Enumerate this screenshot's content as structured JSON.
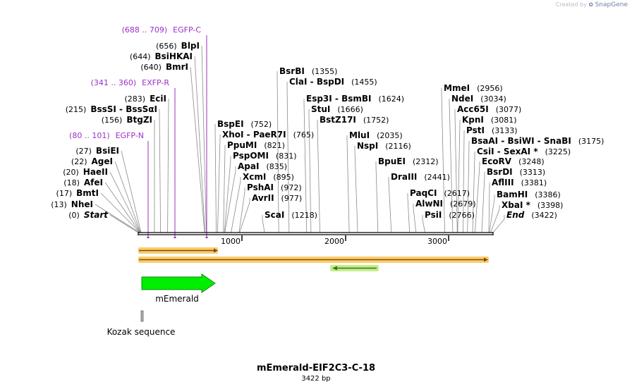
{
  "branding": {
    "created_by": "Created by",
    "product": "SnapGene"
  },
  "plasmid": {
    "name": "mEmerald-EIF2C3-C-18",
    "length_label": "3422 bp",
    "length": 3422
  },
  "ruler": {
    "ticks": [
      "1000",
      "2000",
      "3000"
    ]
  },
  "sites": [
    {
      "pos": "(0)",
      "name": "Start",
      "italic": true,
      "bp": 0
    },
    {
      "pos": "(13)",
      "name": "NheI",
      "bp": 13
    },
    {
      "pos": "(17)",
      "name": "BmtI",
      "bp": 17
    },
    {
      "pos": "(18)",
      "name": "AfeI",
      "bp": 18
    },
    {
      "pos": "(20)",
      "name": "HaeII",
      "bp": 20
    },
    {
      "pos": "(22)",
      "name": "AgeI",
      "bp": 22
    },
    {
      "pos": "(27)",
      "name": "BsiEI",
      "bp": 27
    },
    {
      "pos": "(156)",
      "name": "BtgZI",
      "bp": 156
    },
    {
      "pos": "(215)",
      "name": "BssSI  -  BssSαI",
      "bp": 215
    },
    {
      "pos": "(283)",
      "name": "EciI",
      "bp": 283
    },
    {
      "pos": "(640)",
      "name": "BmrI",
      "bp": 640
    },
    {
      "pos": "(644)",
      "name": "BsiHKAI",
      "bp": 644
    },
    {
      "pos": "(656)",
      "name": "BlpI",
      "bp": 656
    },
    {
      "name": "BspEI",
      "pos": "(752)",
      "bp": 752
    },
    {
      "name": "XhoI  -  PaeR7I",
      "pos": "(765)",
      "bp": 765
    },
    {
      "name": "PpuMI",
      "pos": "(821)",
      "bp": 821
    },
    {
      "name": "PspOMI",
      "pos": "(831)",
      "bp": 831
    },
    {
      "name": "ApaI",
      "pos": "(835)",
      "bp": 835
    },
    {
      "name": "XcmI",
      "pos": "(895)",
      "bp": 895
    },
    {
      "name": "PshAI",
      "pos": "(972)",
      "bp": 972
    },
    {
      "name": "AvrII",
      "pos": "(977)",
      "bp": 977
    },
    {
      "name": "ScaI",
      "pos": "(1218)",
      "bp": 1218
    },
    {
      "name": "BsrBI",
      "pos": "(1355)",
      "bp": 1355
    },
    {
      "name": "ClaI  -  BspDI",
      "pos": "(1455)",
      "bp": 1455
    },
    {
      "name": "Esp3I  -  BsmBI",
      "pos": "(1624)",
      "bp": 1624
    },
    {
      "name": "StuI",
      "pos": "(1666)",
      "bp": 1666
    },
    {
      "name": "BstZ17I",
      "pos": "(1752)",
      "bp": 1752
    },
    {
      "name": "MluI",
      "pos": "(2035)",
      "bp": 2035
    },
    {
      "name": "NspI",
      "pos": "(2116)",
      "bp": 2116
    },
    {
      "name": "BpuEI",
      "pos": "(2312)",
      "bp": 2312
    },
    {
      "name": "DraIII",
      "pos": "(2441)",
      "bp": 2441
    },
    {
      "name": "PaqCI",
      "pos": "(2617)",
      "bp": 2617
    },
    {
      "name": "AlwNI",
      "pos": "(2679)",
      "bp": 2679
    },
    {
      "name": "PsiI",
      "pos": "(2766)",
      "bp": 2766
    },
    {
      "name": "MmeI",
      "pos": "(2956)",
      "bp": 2956
    },
    {
      "name": "NdeI",
      "pos": "(3034)",
      "bp": 3034
    },
    {
      "name": "Acc65I",
      "pos": "(3077)",
      "bp": 3077
    },
    {
      "name": "KpnI",
      "pos": "(3081)",
      "bp": 3081
    },
    {
      "name": "PstI",
      "pos": "(3133)",
      "bp": 3133
    },
    {
      "name": "BsaAI  -  BsiWI  -  SnaBI",
      "pos": "(3175)",
      "bp": 3175
    },
    {
      "name": "CsiI  -  SexAI *",
      "pos": "(3225)",
      "bp": 3225
    },
    {
      "name": "EcoRV",
      "pos": "(3248)",
      "bp": 3248
    },
    {
      "name": "BsrDI",
      "pos": "(3313)",
      "bp": 3313
    },
    {
      "name": "AflIII",
      "pos": "(3381)",
      "bp": 3381
    },
    {
      "name": "BamHI",
      "pos": "(3386)",
      "bp": 3386
    },
    {
      "name": "XbaI *",
      "pos": "(3398)",
      "bp": 3398
    },
    {
      "name": "End",
      "italic": true,
      "pos": "(3422)",
      "bp": 3422
    }
  ],
  "primers": [
    {
      "range": "(688 .. 709)",
      "name": "EGFP-C"
    },
    {
      "range": "(341 .. 360)",
      "name": "EXFP-R"
    },
    {
      "range": "(80 .. 101)",
      "name": "EGFP-N"
    }
  ],
  "features": [
    {
      "name": "mEmerald",
      "color": "#00ee00"
    },
    {
      "name": "Kozak sequence",
      "color": "#b0b0b0"
    }
  ],
  "colors": {
    "primer": "#9a30c8",
    "orf_highlight": "#f7c95a",
    "orf_line": "#8b4513",
    "feature_green": "#00ee00"
  }
}
